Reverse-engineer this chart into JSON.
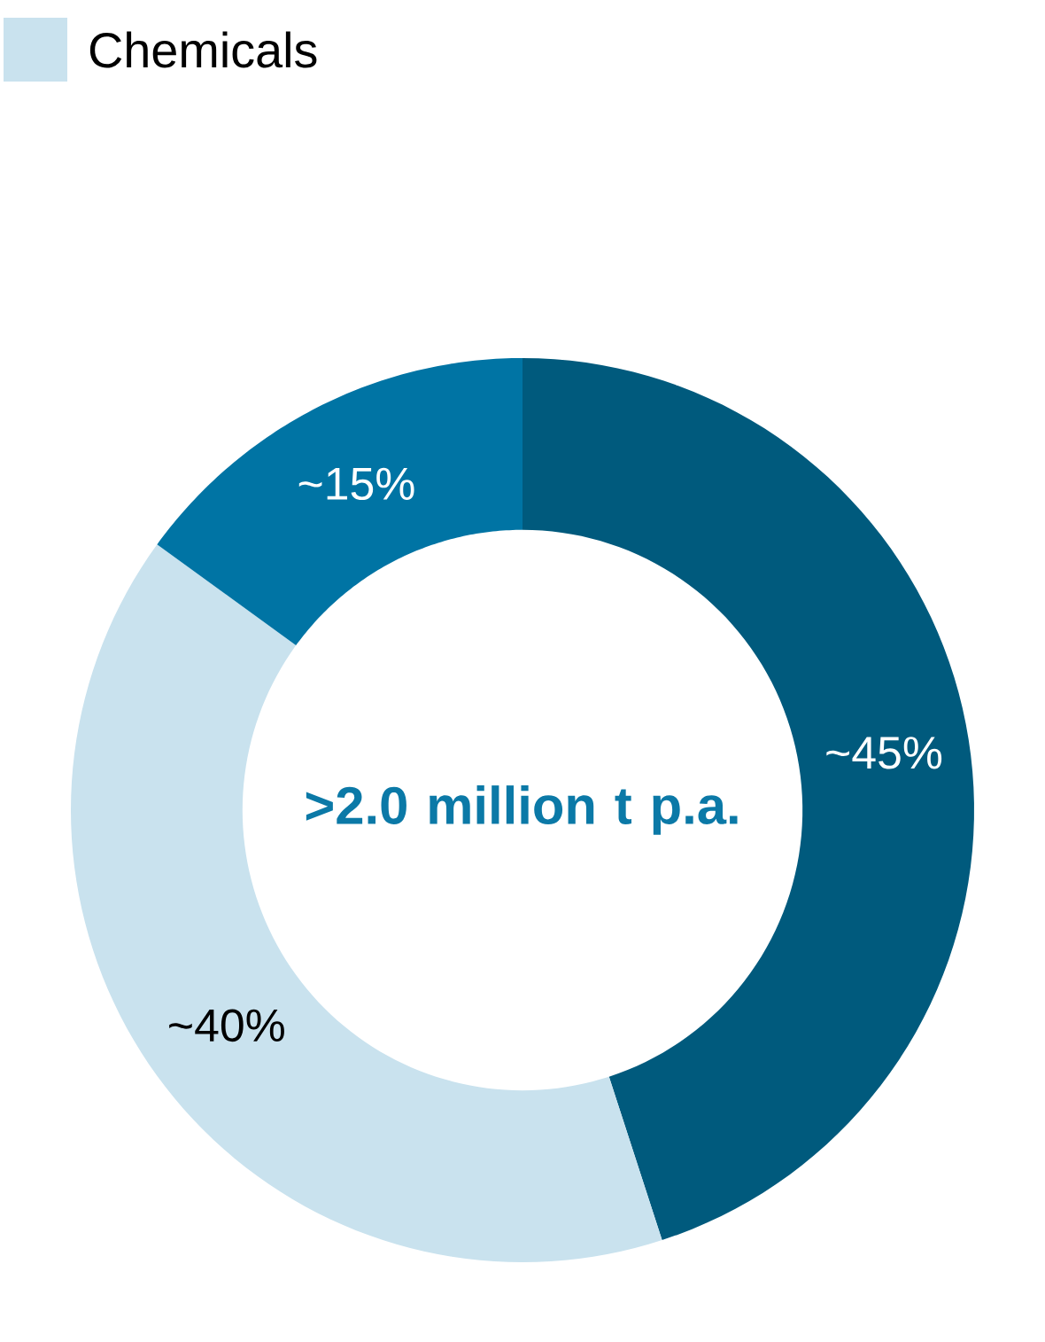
{
  "chart_data": {
    "type": "donut",
    "categories": [
      null,
      "Chemicals",
      null
    ],
    "values": [
      45,
      40,
      15
    ],
    "colors": [
      "#005a7d",
      "#c9e2ee",
      "#0074a4"
    ],
    "value_labels": [
      "~45%",
      "~40%",
      "~15%"
    ],
    "legend": "top left",
    "annotations": [
      ">2.0 million t p.a."
    ]
  }
}
